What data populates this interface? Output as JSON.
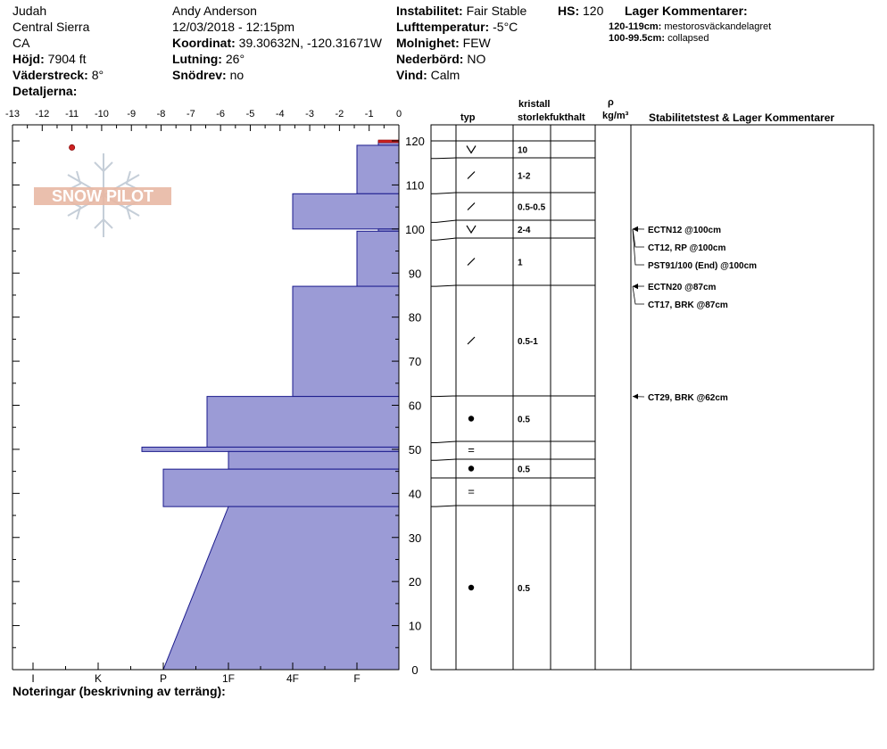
{
  "header": {
    "location": "Judah",
    "region": "Central Sierra",
    "state": "CA",
    "elevation_label": "Höjd:",
    "elevation_value": "7904 ft",
    "aspect_label": "Väderstreck:",
    "aspect_value": "8°",
    "details_label": "Detaljerna:",
    "observer": "Andy Anderson",
    "datetime": "12/03/2018 - 12:15pm",
    "coord_label": "Koordinat:",
    "coord_value": "39.30632N, -120.31671W",
    "slope_label": "Lutning:",
    "slope_value": "26°",
    "drift_label": "Snödrev:",
    "drift_value": "no",
    "instability_label": "Instabilitet:",
    "instability_value": "Fair Stable",
    "airtemp_label": "Lufttemperatur:",
    "airtemp_value": "-5°C",
    "cloud_label": "Molnighet:",
    "cloud_value": "FEW",
    "precip_label": "Nederbörd:",
    "precip_value": "NO",
    "wind_label": "Vind:",
    "wind_value": "Calm",
    "hs_label": "HS:",
    "hs_value": "120",
    "layer_comments_title": "Lager Kommentarer:",
    "layer_comments": [
      {
        "range": "120-119cm:",
        "text": "mestorosväckandelagret"
      },
      {
        "range": "100-99.5cm:",
        "text": "collapsed"
      }
    ]
  },
  "logo": {
    "text": "SNOW PILOT"
  },
  "column_headers": {
    "crystal": "kristall",
    "type": "typ",
    "size": "storlek",
    "moisture": "fukthalt",
    "rho": "ρ",
    "density_unit": "kg/m³",
    "stability": "Stabilitetstest & Lager Kommentarer"
  },
  "footer": {
    "notes_label": "Noteringar (beskrivning av terräng):"
  },
  "chart_data": {
    "type": "bar",
    "orientation": "horizontal",
    "description_axis_x_temp": "snow temperature",
    "temp_axis": {
      "min": -13,
      "max": 0,
      "ticks": [
        "-13",
        "-12",
        "-11",
        "-10",
        "-9",
        "-8",
        "-7",
        "-6",
        "-5",
        "-4",
        "-3",
        "-2",
        "-1",
        "0"
      ]
    },
    "depth_axis": {
      "min": 0,
      "max": 120,
      "ticks": [
        "0",
        "10",
        "20",
        "30",
        "40",
        "50",
        "60",
        "70",
        "80",
        "90",
        "100",
        "110",
        "120"
      ]
    },
    "hardness_axis": {
      "ticks": [
        "I",
        "K",
        "P",
        "1F",
        "4F",
        "F"
      ]
    },
    "temperature_points": [
      {
        "depth": 118.5,
        "temp": -11
      }
    ],
    "hardness_layers": [
      {
        "top": 120,
        "bottom": 119,
        "hardness": "F-"
      },
      {
        "top": 119,
        "bottom": 108,
        "hardness": "F"
      },
      {
        "top": 108,
        "bottom": 100,
        "hardness": "4F"
      },
      {
        "top": 100,
        "bottom": 99.5,
        "hardness": "F-"
      },
      {
        "top": 99.5,
        "bottom": 87,
        "hardness": "F"
      },
      {
        "top": 87,
        "bottom": 62,
        "hardness": "4F"
      },
      {
        "top": 62,
        "bottom": 50.5,
        "hardness": "1F+"
      },
      {
        "top": 50.5,
        "bottom": 49.5,
        "hardness": "P+"
      },
      {
        "top": 49.5,
        "bottom": 45.5,
        "hardness": "1F"
      },
      {
        "top": 45.5,
        "bottom": 37,
        "hardness": "P"
      },
      {
        "top": 37,
        "bottom": 0,
        "hardness": "1F to P"
      }
    ],
    "layers": [
      {
        "top": 120,
        "bottom": 116,
        "type": "V",
        "size": "10"
      },
      {
        "top": 116,
        "bottom": 108,
        "type": "/",
        "size": "1-2"
      },
      {
        "top": 108,
        "bottom": 101.5,
        "type": "/",
        "size": "0.5-0.5"
      },
      {
        "top": 101.5,
        "bottom": 97.5,
        "type": "V",
        "size": "2-4"
      },
      {
        "top": 97.5,
        "bottom": 87,
        "type": "/",
        "size": "1"
      },
      {
        "top": 87,
        "bottom": 62,
        "type": "/",
        "size": "0.5-1"
      },
      {
        "top": 62,
        "bottom": 51.5,
        "type": "•",
        "size": "0.5"
      },
      {
        "top": 51.5,
        "bottom": 47.5,
        "type": "=",
        "size": ""
      },
      {
        "top": 47.5,
        "bottom": 43.5,
        "type": "•",
        "size": "0.5"
      },
      {
        "top": 43.5,
        "bottom": 37,
        "type": "=",
        "size": ""
      },
      {
        "top": 37,
        "bottom": 0,
        "type": "•",
        "size": "0.5"
      }
    ],
    "stability_tests": [
      {
        "depth": 100,
        "text": "ECTN12 @100cm"
      },
      {
        "depth": 100,
        "text": "CT12, RP @100cm"
      },
      {
        "depth": 100,
        "text": "PST91/100 (End) @100cm"
      },
      {
        "depth": 87,
        "text": "ECTN20 @87cm"
      },
      {
        "depth": 87,
        "text": "CT17, BRK @87cm"
      },
      {
        "depth": 62,
        "text": "CT29, BRK @62cm"
      }
    ],
    "colors": {
      "hardness_fill": "#9b9bd6",
      "hardness_stroke": "#1a1a8c",
      "temp_point": "#cc2222",
      "top_marker": "#cc2222"
    }
  }
}
